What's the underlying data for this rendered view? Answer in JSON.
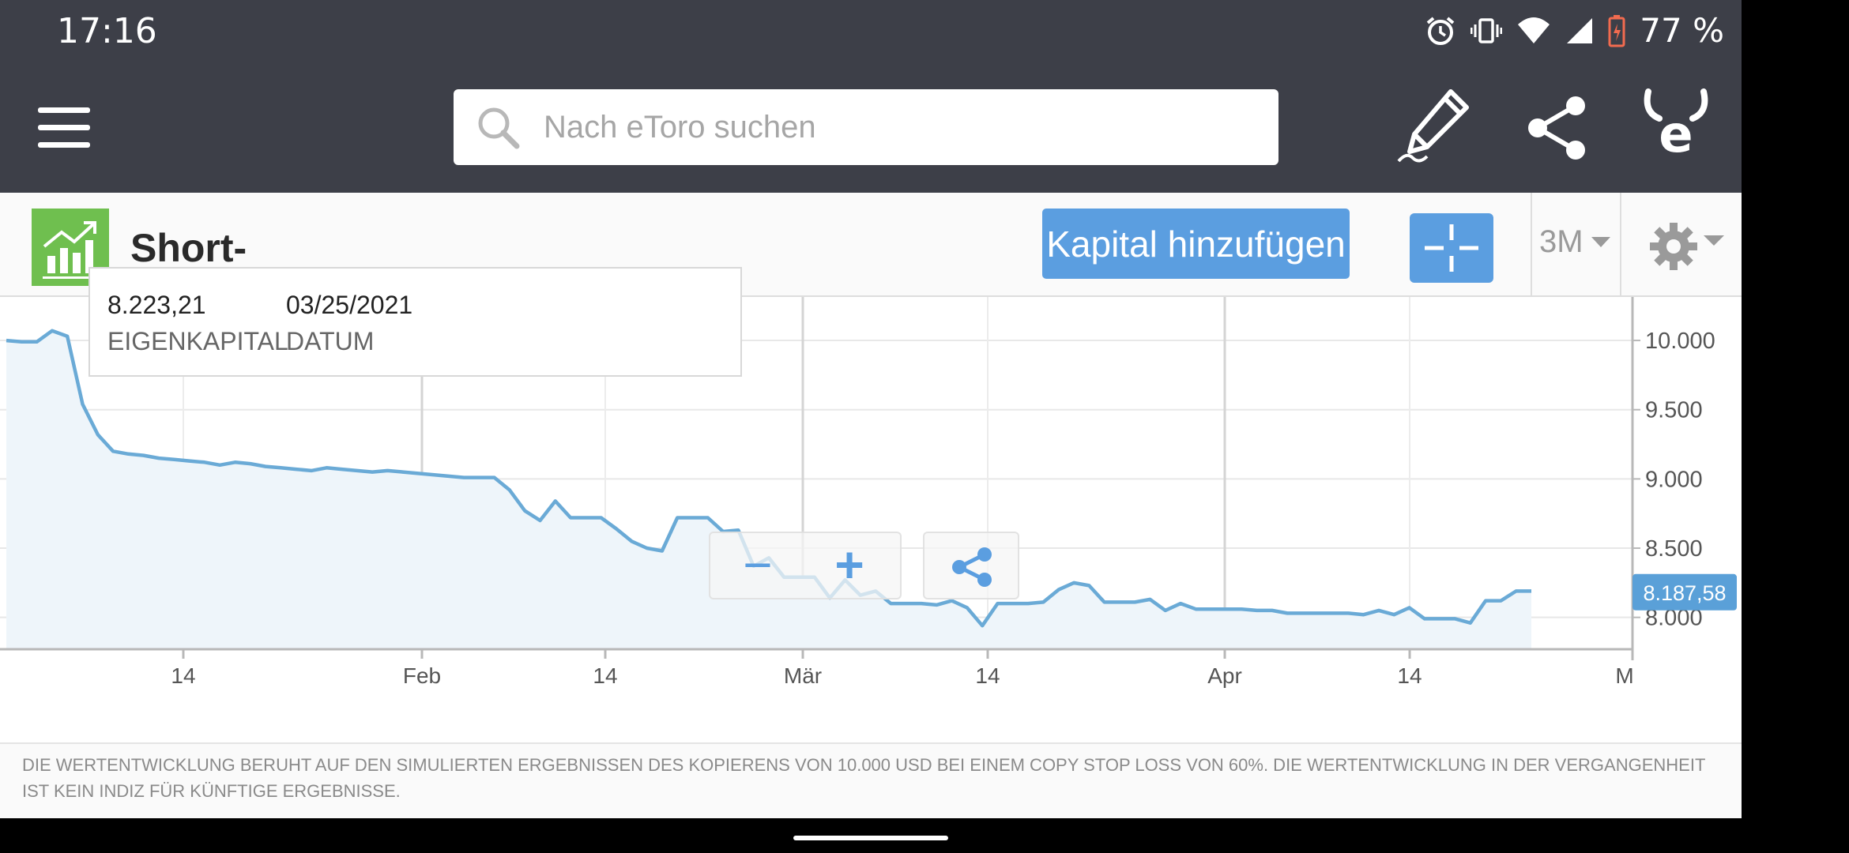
{
  "status_bar": {
    "time": "17:16",
    "battery_percent": "77 %",
    "icons": [
      "alarm-icon",
      "vibrate-icon",
      "wifi-icon",
      "signal-icon",
      "battery-icon"
    ]
  },
  "app_bar": {
    "search_placeholder": "Nach eToro suchen",
    "icons": [
      "menu-icon",
      "search-icon",
      "edit-pencil-icon",
      "share-icon",
      "etoro-logo-icon"
    ]
  },
  "portfolio": {
    "name": "Short-Banks",
    "add_capital_label": "Kapital hinzufügen",
    "range_label": "3M"
  },
  "tooltip": {
    "value": "8.223,21",
    "date": "03/25/2021",
    "value_label": "EIGENKAPITAL",
    "date_label": "DATUM"
  },
  "chart_data": {
    "type": "area",
    "x_tick_labels": [
      "14",
      "Feb",
      "14",
      "Mär",
      "14",
      "Apr",
      "14",
      "M"
    ],
    "y_tick_labels": [
      "10.000",
      "9.500",
      "9.000",
      "8.500",
      "8.000"
    ],
    "ylim": [
      7770,
      10200
    ],
    "current_value_label": "8.187,58",
    "current_value": 8187.58,
    "grid": true,
    "series": [
      {
        "values": [
          10000,
          9990,
          9990,
          10070,
          10030,
          9540,
          9320,
          9200,
          9180,
          9170,
          9150,
          9140,
          9130,
          9120,
          9100,
          9120,
          9110,
          9090,
          9080,
          9070,
          9060,
          9080,
          9070,
          9060,
          9050,
          9060,
          9050,
          9040,
          9030,
          9020,
          9010,
          9010,
          9010,
          8920,
          8770,
          8700,
          8840,
          8720,
          8720,
          8720,
          8640,
          8550,
          8500,
          8480,
          8720,
          8720,
          8720,
          8620,
          8630,
          8370,
          8430,
          8290,
          8290,
          8290,
          8140,
          8270,
          8160,
          8190,
          8100,
          8100,
          8100,
          8090,
          8120,
          8070,
          7940,
          8100,
          8100,
          8100,
          8110,
          8200,
          8250,
          8230,
          8110,
          8110,
          8110,
          8130,
          8050,
          8100,
          8060,
          8060,
          8060,
          8060,
          8050,
          8050,
          8030,
          8030,
          8030,
          8030,
          8030,
          8020,
          8050,
          8020,
          8070,
          7990,
          7990,
          7990,
          7960,
          8120,
          8120,
          8190,
          8190
        ]
      }
    ]
  },
  "disclaimer": "DIE WERTENTWICKLUNG BERUHT AUF DEN SIMULIERTEN ERGEBNISSEN DES KOPIERENS VON 10.000 USD BEI EINEM COPY STOP LOSS VON 60%. DIE WERTENTWICKLUNG IN DER VERGANGENHEIT IST KEIN INDIZ FÜR KÜNFTIGE ERGEBNISSE.",
  "colors": {
    "bar_bg": "#3d3f48",
    "accent_blue": "#5b9ee0",
    "line": "#6aaad6",
    "area_fill": "#eef5fa",
    "badge": "#5aa0d8",
    "portfolio_icon_green": "#6fbf4f"
  }
}
